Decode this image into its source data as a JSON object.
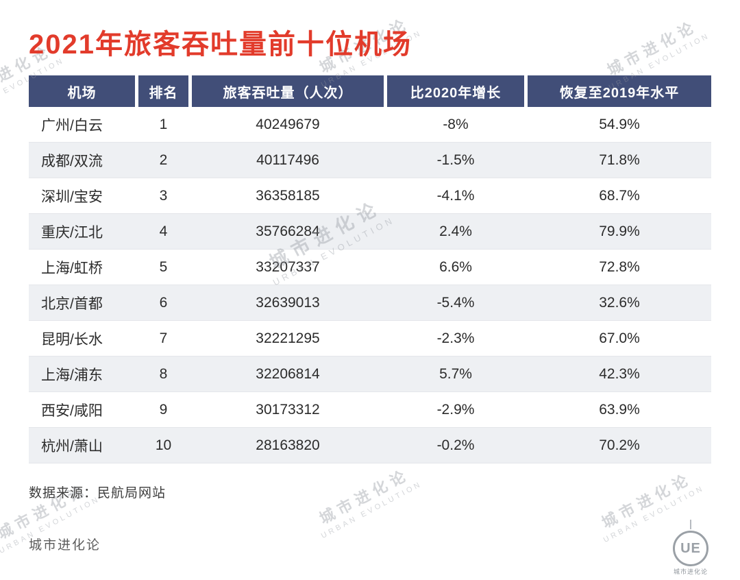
{
  "page": {
    "title": "2021年旅客吞吐量前十位机场",
    "source_note": "数据来源：民航局网站",
    "footer_brand": "城市进化论"
  },
  "watermark": {
    "line1": "城市进化论",
    "line2": "URBAN EVOLUTION"
  },
  "logo": {
    "monogram": "UE",
    "label": "城市进化论"
  },
  "colors": {
    "title_red": "#e23b2b",
    "header_bg": "#414e78",
    "row_alt_bg": "#eef0f3",
    "header_text": "#ffffff",
    "body_text": "#2b2b2b"
  },
  "chart_data": {
    "type": "table",
    "title": "2021年旅客吞吐量前十位机场",
    "columns": [
      "机场",
      "排名",
      "旅客吞吐量（人次）",
      "比2020年增长",
      "恢复至2019年水平"
    ],
    "rows": [
      [
        "广州/白云",
        "1",
        "40249679",
        "-8%",
        "54.9%"
      ],
      [
        "成都/双流",
        "2",
        "40117496",
        "-1.5%",
        "71.8%"
      ],
      [
        "深圳/宝安",
        "3",
        "36358185",
        "-4.1%",
        "68.7%"
      ],
      [
        "重庆/江北",
        "4",
        "35766284",
        "2.4%",
        "79.9%"
      ],
      [
        "上海/虹桥",
        "5",
        "33207337",
        "6.6%",
        "72.8%"
      ],
      [
        "北京/首都",
        "6",
        "32639013",
        "-5.4%",
        "32.6%"
      ],
      [
        "昆明/长水",
        "7",
        "32221295",
        "-2.3%",
        "67.0%"
      ],
      [
        "上海/浦东",
        "8",
        "32206814",
        "5.7%",
        "42.3%"
      ],
      [
        "西安/咸阳",
        "9",
        "30173312",
        "-2.9%",
        "63.9%"
      ],
      [
        "杭州/萧山",
        "10",
        "28163820",
        "-0.2%",
        "70.2%"
      ]
    ]
  }
}
